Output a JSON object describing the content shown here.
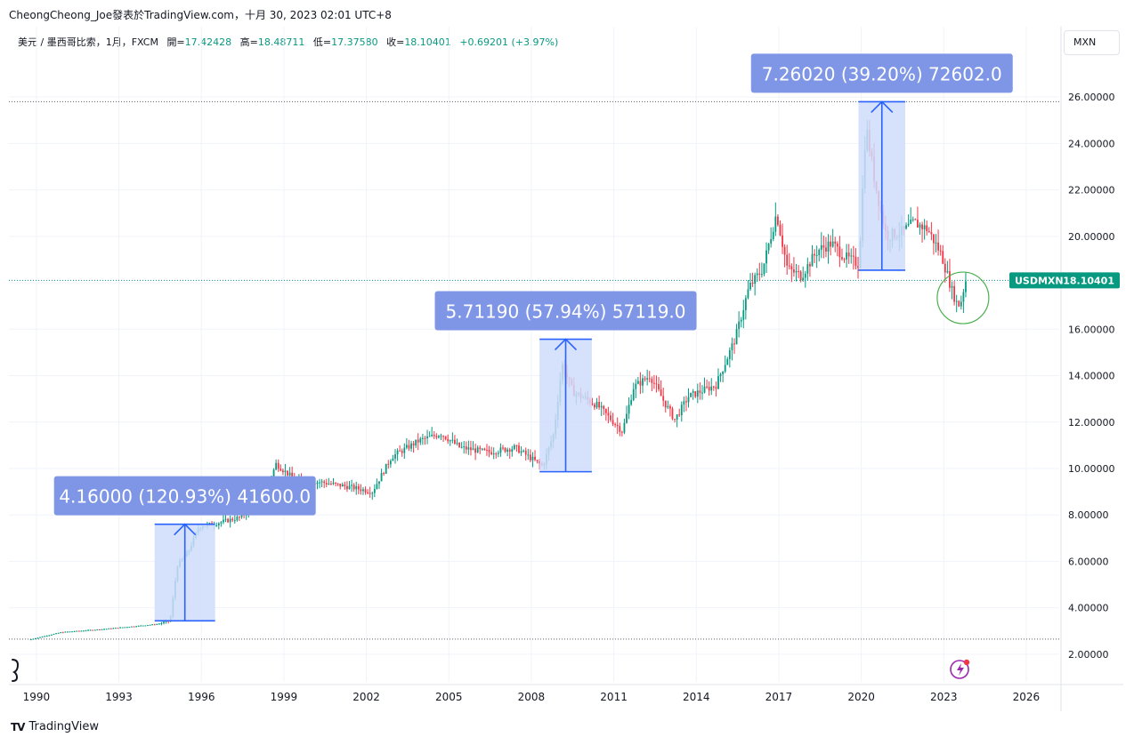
{
  "header": {
    "title_line": "CheongCheong_Joe發表於TradingView.com，十月 30, 2023 02:01 UTC+8",
    "symbol": "美元 / 墨西哥比索，1月，FXCM",
    "open_label": "開=",
    "open": "17.42428",
    "high_label": "高=",
    "high": "18.48711",
    "low_label": "低=",
    "low": "17.37580",
    "close_label": "收=",
    "close": "18.10401",
    "change": "+0.69201 (+3.97%)"
  },
  "currency_button": "MXN",
  "brand": {
    "logo": "TV",
    "label": "TradingView"
  },
  "colors": {
    "up": "#089981",
    "down": "#f23645",
    "box_fill": "#cfdcfb",
    "box_line": "#2962ff",
    "label_bg": "#7f96e6",
    "circle": "#4caf50"
  },
  "chart_data": {
    "type": "candlestick",
    "symbol": "USDMXN",
    "interval": "1M",
    "xlim": [
      1989.0,
      2027.2
    ],
    "ylim": [
      1.0,
      27.5
    ],
    "x_ticks": [
      "1990",
      "1993",
      "1996",
      "1999",
      "2002",
      "2005",
      "2008",
      "2011",
      "2014",
      "2017",
      "2020",
      "2023",
      "2026"
    ],
    "y_ticks": [
      "2.00000",
      "4.00000",
      "6.00000",
      "8.00000",
      "10.00000",
      "12.00000",
      "14.00000",
      "16.00000",
      "18.00000",
      "20.00000",
      "22.00000",
      "24.00000",
      "26.00000"
    ],
    "last_price": {
      "label": "USDMXN",
      "value": "18.10401",
      "y": 18.104
    },
    "hlines": [
      25.8,
      2.65
    ],
    "keypoints": [
      [
        1989.8,
        2.62
      ],
      [
        1991.0,
        2.95
      ],
      [
        1992.5,
        3.08
      ],
      [
        1994.5,
        3.3
      ],
      [
        1994.95,
        3.45
      ],
      [
        1995.2,
        5.8
      ],
      [
        1995.6,
        6.4
      ],
      [
        1996.0,
        7.5
      ],
      [
        1996.5,
        7.6
      ],
      [
        1997.5,
        7.9
      ],
      [
        1998.3,
        8.6
      ],
      [
        1998.8,
        10.2
      ],
      [
        1999.5,
        9.5
      ],
      [
        2000.5,
        9.4
      ],
      [
        2001.5,
        9.2
      ],
      [
        2002.3,
        9.0
      ],
      [
        2003.0,
        10.5
      ],
      [
        2004.0,
        11.2
      ],
      [
        2004.8,
        11.5
      ],
      [
        2005.5,
        10.9
      ],
      [
        2006.5,
        10.7
      ],
      [
        2007.5,
        10.9
      ],
      [
        2008.5,
        10.1
      ],
      [
        2008.9,
        11.5
      ],
      [
        2009.2,
        14.5
      ],
      [
        2009.6,
        13.3
      ],
      [
        2010.5,
        12.7
      ],
      [
        2011.4,
        11.6
      ],
      [
        2011.8,
        13.5
      ],
      [
        2012.4,
        14.0
      ],
      [
        2012.9,
        12.9
      ],
      [
        2013.3,
        12.1
      ],
      [
        2013.8,
        13.1
      ],
      [
        2014.8,
        13.6
      ],
      [
        2015.5,
        15.6
      ],
      [
        2016.0,
        17.8
      ],
      [
        2016.5,
        18.6
      ],
      [
        2017.0,
        21.0
      ],
      [
        2017.4,
        18.6
      ],
      [
        2017.9,
        18.3
      ],
      [
        2018.5,
        19.4
      ],
      [
        2019.0,
        19.7
      ],
      [
        2019.5,
        19.1
      ],
      [
        2020.0,
        18.8
      ],
      [
        2020.25,
        24.8
      ],
      [
        2020.6,
        22.2
      ],
      [
        2021.0,
        20.0
      ],
      [
        2021.6,
        20.2
      ],
      [
        2022.0,
        20.6
      ],
      [
        2022.5,
        20.3
      ],
      [
        2023.0,
        19.2
      ],
      [
        2023.4,
        17.6
      ],
      [
        2023.6,
        17.0
      ],
      [
        2023.75,
        17.3
      ],
      [
        2023.85,
        18.1
      ]
    ],
    "measurements": [
      {
        "label": "4.16000 (120.93%) 41600.0",
        "x0": 1994.3,
        "x1": 1996.5,
        "y0": 3.44,
        "y1": 7.6,
        "arrow_x": 1995.4
      },
      {
        "label": "5.71190 (57.94%) 57119.0",
        "x0": 2008.3,
        "x1": 2010.2,
        "y0": 9.86,
        "y1": 15.57,
        "arrow_x": 2009.25
      },
      {
        "label": "7.26020 (39.20%) 72602.0",
        "x0": 2019.9,
        "x1": 2021.6,
        "y0": 18.54,
        "y1": 25.8,
        "arrow_x": 2020.75
      }
    ],
    "annotations": [
      {
        "shape": "circle",
        "x": 2023.7,
        "y": 17.35
      }
    ]
  }
}
